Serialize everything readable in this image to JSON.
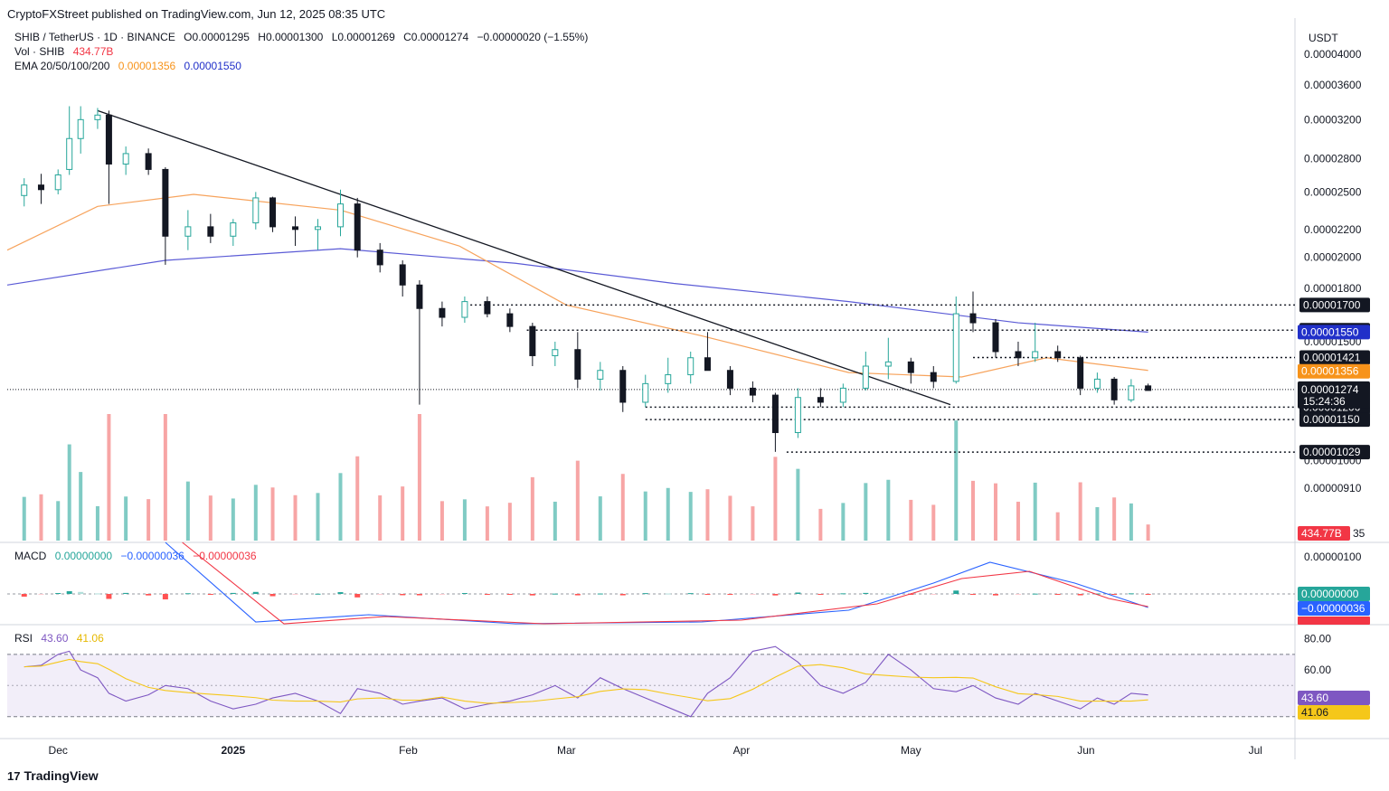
{
  "header": {
    "published": "CryptoFXStreet published on TradingView.com, Jun 12, 2025 08:35 UTC"
  },
  "legend": {
    "symbol": "SHIB / TetherUS · 1D · BINANCE",
    "o_label": "O",
    "o": "0.00001295",
    "h_label": "H",
    "h": "0.00001300",
    "l_label": "L",
    "l": "0.00001269",
    "c_label": "C",
    "c": "0.00001274",
    "change": "−0.00000020 (−1.55%)",
    "vol_label": "Vol · SHIB",
    "vol": "434.77B",
    "ema_label": "EMA 20/50/100/200",
    "ema50": "0.00001356",
    "ema200": "0.00001550"
  },
  "macd_legend": {
    "label": "MACD",
    "hist": "0.00000000",
    "macd": "−0.00000036",
    "signal": "−0.00000036"
  },
  "rsi_legend": {
    "label": "RSI",
    "rsi": "43.60",
    "ma": "41.06"
  },
  "footer": {
    "brand": "TradingView",
    "logo_text": "17"
  },
  "colors": {
    "up": "#26a69a",
    "down": "#131722",
    "vol_up": "#80cbc4",
    "vol_down": "#f7a5a5",
    "ema50": "#f7a35c",
    "ema200": "#5b5bd6",
    "macd": "#2962ff",
    "signal": "#f23645",
    "rsi": "#7e57c2",
    "rsi_ma": "#f5c71a"
  },
  "chart_data": [
    {
      "type": "candlestick",
      "title": "SHIB / TetherUS · 1D · BINANCE",
      "y_axis_unit": "USDT",
      "y_ticks": [
        "0.00004000",
        "0.00003600",
        "0.00003200",
        "0.00002800",
        "0.00002500",
        "0.00002200",
        "0.00002000",
        "0.00001800",
        "0.00001500",
        "0.00001000",
        "0.00000910"
      ],
      "x_ticks": [
        "Dec",
        "2025",
        "Feb",
        "Mar",
        "Apr",
        "May",
        "Jun",
        "Jul"
      ],
      "horizontal_levels": [
        "0.00001700",
        "0.00001560",
        "0.00001421",
        "0.00001200",
        "0.00001150",
        "0.00001029"
      ],
      "price_labels": {
        "last": "0.00001274",
        "countdown": "15:24:36",
        "ema50": "0.00001356",
        "ema200": "0.00001550",
        "volume": "434.77B"
      },
      "volume_axis_tick": "35",
      "ema_series": [
        {
          "name": "EMA 50",
          "value": "0.00001356"
        },
        {
          "name": "EMA 200",
          "value": "0.00001550"
        }
      ],
      "trendline": {
        "from": [
          "Dec 8, 2024",
          "0.0000330"
        ],
        "to": [
          "May 8, 2025",
          "0.0000121"
        ]
      },
      "ohlc": [
        [
          "2024-11-25",
          2.47e-05,
          2.62e-05,
          2.38e-05,
          2.56e-05
        ],
        [
          "2024-11-28",
          2.56e-05,
          2.66e-05,
          2.4e-05,
          2.52e-05
        ],
        [
          "2024-12-01",
          2.52e-05,
          2.7e-05,
          2.48e-05,
          2.65e-05
        ],
        [
          "2024-12-03",
          2.7e-05,
          3.35e-05,
          2.65e-05,
          3e-05
        ],
        [
          "2024-12-05",
          3e-05,
          3.35e-05,
          2.85e-05,
          3.2e-05
        ],
        [
          "2024-12-08",
          3.2e-05,
          3.33e-05,
          3.1e-05,
          3.25e-05
        ],
        [
          "2024-12-10",
          3.25e-05,
          3.3e-05,
          2.4e-05,
          2.75e-05
        ],
        [
          "2024-12-13",
          2.75e-05,
          2.92e-05,
          2.65e-05,
          2.85e-05
        ],
        [
          "2024-12-17",
          2.85e-05,
          2.9e-05,
          2.65e-05,
          2.7e-05
        ],
        [
          "2024-12-20",
          2.7e-05,
          2.72e-05,
          1.95e-05,
          2.15e-05
        ],
        [
          "2024-12-24",
          2.15e-05,
          2.35e-05,
          2.05e-05,
          2.22e-05
        ],
        [
          "2024-12-28",
          2.22e-05,
          2.32e-05,
          2.1e-05,
          2.15e-05
        ],
        [
          "2025-01-01",
          2.15e-05,
          2.28e-05,
          2.08e-05,
          2.25e-05
        ],
        [
          "2025-01-05",
          2.25e-05,
          2.5e-05,
          2.2e-05,
          2.45e-05
        ],
        [
          "2025-01-08",
          2.45e-05,
          2.46e-05,
          2.18e-05,
          2.22e-05
        ],
        [
          "2025-01-12",
          2.22e-05,
          2.3e-05,
          2.08e-05,
          2.2e-05
        ],
        [
          "2025-01-16",
          2.2e-05,
          2.28e-05,
          2.05e-05,
          2.22e-05
        ],
        [
          "2025-01-20",
          2.22e-05,
          2.52e-05,
          2.15e-05,
          2.4e-05
        ],
        [
          "2025-01-23",
          2.4e-05,
          2.45e-05,
          2e-05,
          2.05e-05
        ],
        [
          "2025-01-27",
          2.05e-05,
          2.1e-05,
          1.9e-05,
          1.95e-05
        ],
        [
          "2025-01-31",
          1.95e-05,
          1.98e-05,
          1.75e-05,
          1.82e-05
        ],
        [
          "2025-02-03",
          1.82e-05,
          1.85e-05,
          1.21e-05,
          1.68e-05
        ],
        [
          "2025-02-07",
          1.68e-05,
          1.72e-05,
          1.58e-05,
          1.63e-05
        ],
        [
          "2025-02-11",
          1.63e-05,
          1.75e-05,
          1.6e-05,
          1.72e-05
        ],
        [
          "2025-02-15",
          1.72e-05,
          1.75e-05,
          1.63e-05,
          1.65e-05
        ],
        [
          "2025-02-19",
          1.65e-05,
          1.68e-05,
          1.55e-05,
          1.58e-05
        ],
        [
          "2025-02-23",
          1.58e-05,
          1.6e-05,
          1.38e-05,
          1.43e-05
        ],
        [
          "2025-02-27",
          1.43e-05,
          1.5e-05,
          1.38e-05,
          1.46e-05
        ],
        [
          "2025-03-03",
          1.46e-05,
          1.55e-05,
          1.28e-05,
          1.32e-05
        ],
        [
          "2025-03-07",
          1.32e-05,
          1.4e-05,
          1.27e-05,
          1.36e-05
        ],
        [
          "2025-03-11",
          1.36e-05,
          1.38e-05,
          1.18e-05,
          1.22e-05
        ],
        [
          "2025-03-15",
          1.22e-05,
          1.34e-05,
          1.2e-05,
          1.3e-05
        ],
        [
          "2025-03-19",
          1.3e-05,
          1.42e-05,
          1.26e-05,
          1.34e-05
        ],
        [
          "2025-03-23",
          1.34e-05,
          1.45e-05,
          1.3e-05,
          1.42e-05
        ],
        [
          "2025-03-26",
          1.42e-05,
          1.55e-05,
          1.38e-05,
          1.36e-05
        ],
        [
          "2025-03-30",
          1.36e-05,
          1.38e-05,
          1.25e-05,
          1.28e-05
        ],
        [
          "2025-04-03",
          1.28e-05,
          1.31e-05,
          1.22e-05,
          1.25e-05
        ],
        [
          "2025-04-07",
          1.25e-05,
          1.26e-05,
          1.03e-05,
          1.1e-05
        ],
        [
          "2025-04-11",
          1.1e-05,
          1.28e-05,
          1.08e-05,
          1.24e-05
        ],
        [
          "2025-04-15",
          1.24e-05,
          1.28e-05,
          1.2e-05,
          1.22e-05
        ],
        [
          "2025-04-19",
          1.22e-05,
          1.3e-05,
          1.2e-05,
          1.28e-05
        ],
        [
          "2025-04-23",
          1.28e-05,
          1.45e-05,
          1.27e-05,
          1.38e-05
        ],
        [
          "2025-04-27",
          1.38e-05,
          1.52e-05,
          1.32e-05,
          1.4e-05
        ],
        [
          "2025-05-01",
          1.4e-05,
          1.42e-05,
          1.3e-05,
          1.35e-05
        ],
        [
          "2025-05-05",
          1.35e-05,
          1.38e-05,
          1.28e-05,
          1.31e-05
        ],
        [
          "2025-05-09",
          1.31e-05,
          1.75e-05,
          1.3e-05,
          1.65e-05
        ],
        [
          "2025-05-12",
          1.65e-05,
          1.78e-05,
          1.55e-05,
          1.6e-05
        ],
        [
          "2025-05-16",
          1.6e-05,
          1.62e-05,
          1.42e-05,
          1.45e-05
        ],
        [
          "2025-05-20",
          1.45e-05,
          1.5e-05,
          1.38e-05,
          1.42e-05
        ],
        [
          "2025-05-23",
          1.42e-05,
          1.6e-05,
          1.4e-05,
          1.45e-05
        ],
        [
          "2025-05-27",
          1.45e-05,
          1.48e-05,
          1.4e-05,
          1.42e-05
        ],
        [
          "2025-05-31",
          1.42e-05,
          1.43e-05,
          1.25e-05,
          1.28e-05
        ],
        [
          "2025-06-03",
          1.28e-05,
          1.35e-05,
          1.26e-05,
          1.32e-05
        ],
        [
          "2025-06-06",
          1.32e-05,
          1.33e-05,
          1.21e-05,
          1.23e-05
        ],
        [
          "2025-06-09",
          1.23e-05,
          1.32e-05,
          1.22e-05,
          1.29e-05
        ],
        [
          "2025-06-12",
          1.29e-05,
          1.3e-05,
          1.27e-05,
          1.27e-05
        ]
      ]
    },
    {
      "type": "macd",
      "y_ticks": [
        "0.00000100"
      ],
      "labels": [
        "0.00000000",
        "−0.00000036",
        "−0.00000036"
      ]
    },
    {
      "type": "rsi",
      "y_ticks": [
        "80.00",
        "60.00"
      ],
      "bands": [
        30,
        70
      ],
      "rsi": 43.6,
      "rsi_ma": 41.06
    }
  ]
}
